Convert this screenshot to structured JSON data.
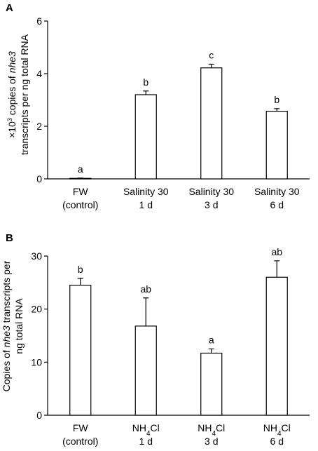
{
  "chart_data": [
    {
      "panel": "A",
      "type": "bar",
      "ylabel": {
        "line1_pre": "×10",
        "line1_sup": "3",
        "line1_mid": " copies of ",
        "line1_gene": "nhe3",
        "line2": "transcripts per ng total RNA"
      },
      "ylim": [
        0,
        6
      ],
      "yticks": [
        0,
        2,
        4,
        6
      ],
      "categories": [
        {
          "line1": "FW",
          "line2": "(control)"
        },
        {
          "line1": "Salinity 30",
          "line2": "1 d"
        },
        {
          "line1": "Salinity 30",
          "line2": "3 d"
        },
        {
          "line1": "Salinity 30",
          "line2": "6 d"
        }
      ],
      "values": [
        0.02,
        3.2,
        4.22,
        2.57
      ],
      "errors": [
        0.01,
        0.14,
        0.14,
        0.1
      ],
      "significance": [
        "a",
        "b",
        "c",
        "b"
      ]
    },
    {
      "panel": "B",
      "type": "bar",
      "ylabel": {
        "line1_pre": "Copies of ",
        "line1_gene": "nhe3",
        "line1_post": " transcripts per",
        "line2": "ng total RNA"
      },
      "ylim": [
        0,
        30
      ],
      "yticks": [
        0,
        10,
        20,
        30
      ],
      "categories": [
        {
          "line1": "FW",
          "line2": "(control)"
        },
        {
          "line1_pre": "NH",
          "line1_sub": "4",
          "line1_post": "Cl",
          "line2": "1 d"
        },
        {
          "line1_pre": "NH",
          "line1_sub": "4",
          "line1_post": "Cl",
          "line2": "3 d"
        },
        {
          "line1_pre": "NH",
          "line1_sub": "4",
          "line1_post": "Cl",
          "line2": "6 d"
        }
      ],
      "values": [
        24.5,
        16.8,
        11.7,
        26.0
      ],
      "errors": [
        1.3,
        5.3,
        0.8,
        3.1
      ],
      "significance": [
        "b",
        "ab",
        "a",
        "ab"
      ]
    }
  ]
}
